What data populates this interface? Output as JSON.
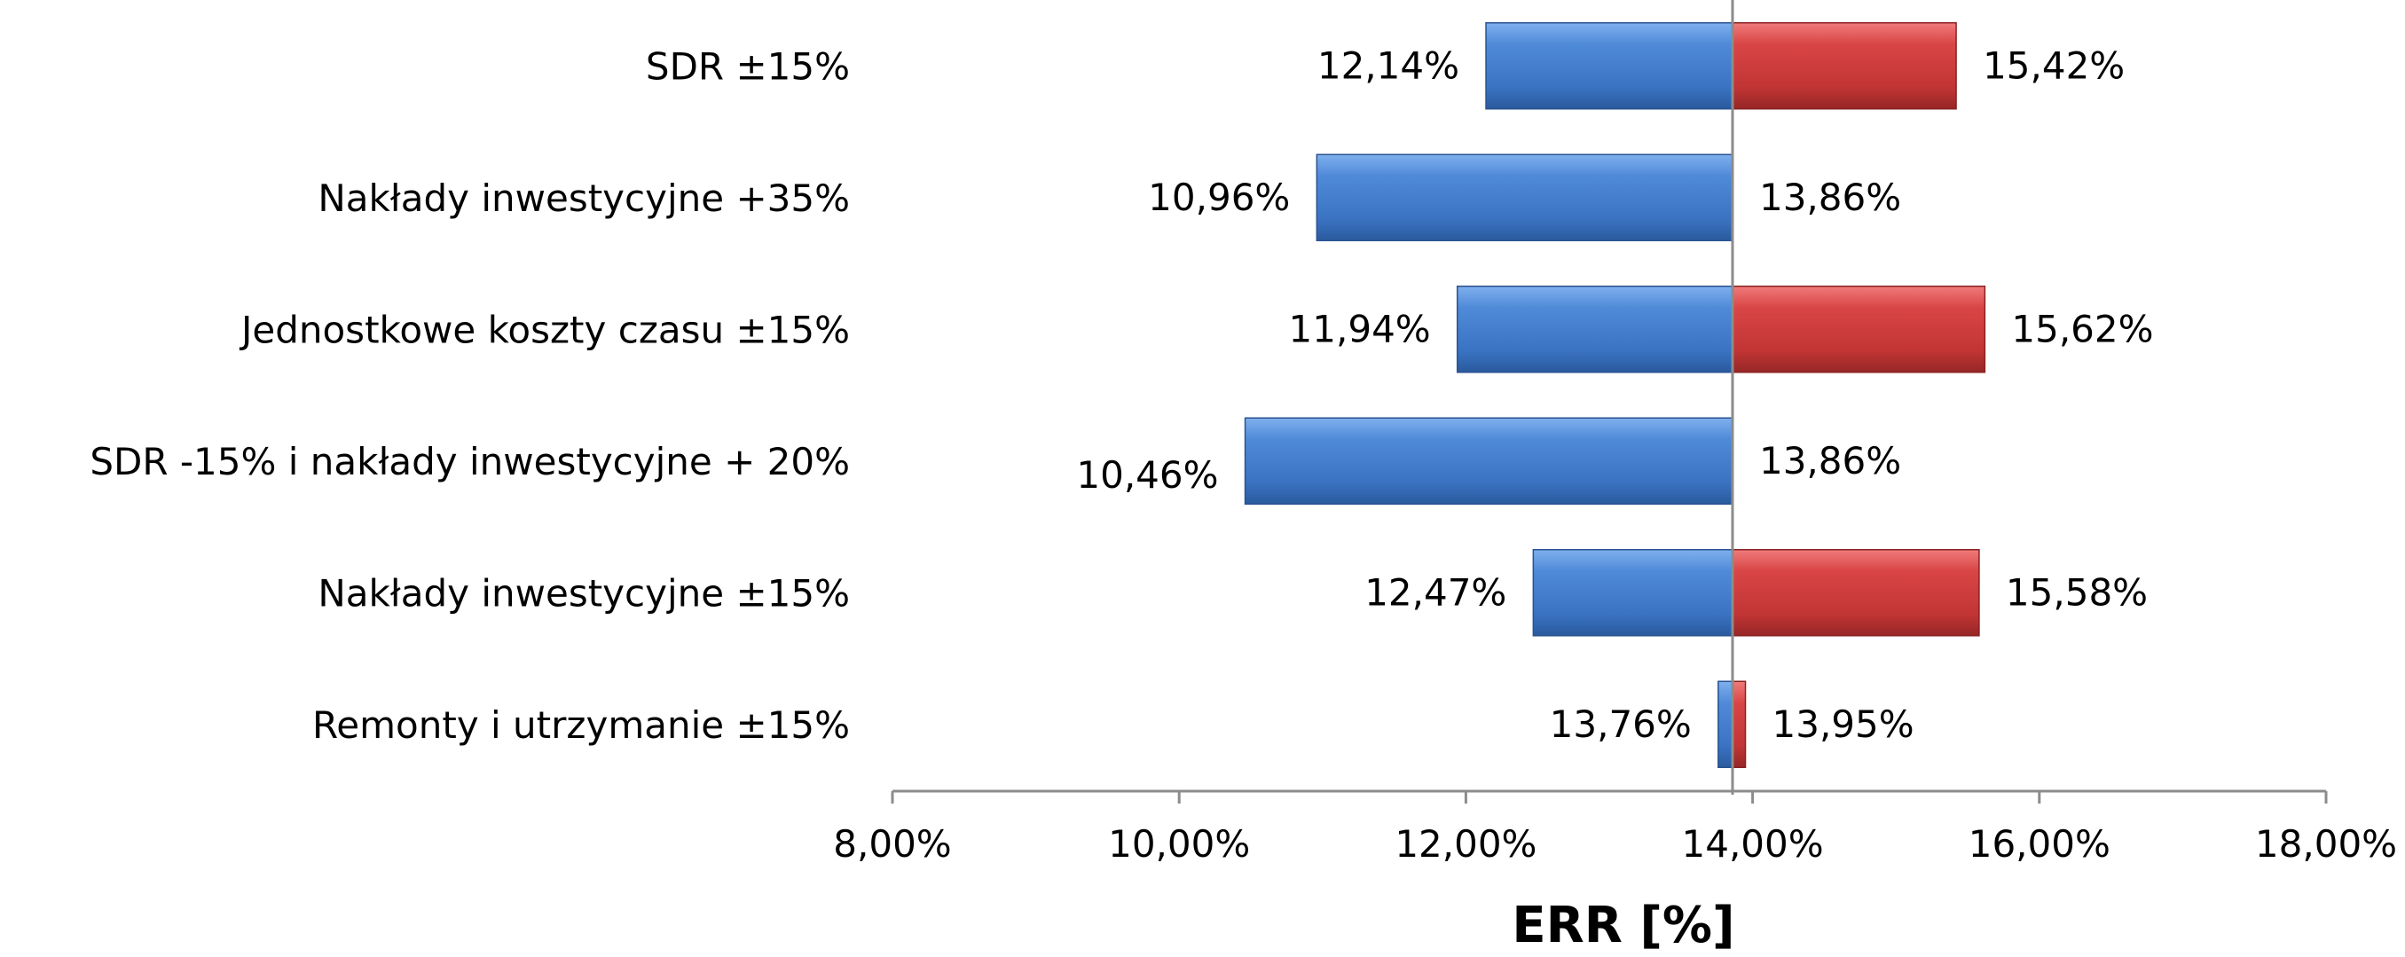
{
  "chart_data": {
    "type": "bar",
    "orientation": "horizontal",
    "subtype": "tornado",
    "base_value": 13.86,
    "categories": [
      "SDR ±15%",
      "Nakłady inwestycyjne +35%",
      "Jednostkowe koszty czasu ±15%",
      "SDR -15% i nakłady inwestycyjne + 20%",
      "Nakłady inwestycyjne ±15%",
      "Remonty i utrzymanie ±15%"
    ],
    "series": [
      {
        "color": "#3c78c8",
        "values": [
          12.14,
          10.96,
          11.94,
          10.46,
          12.47,
          13.76
        ],
        "labels": [
          "12,14%",
          "10,96%",
          "11,94%",
          "10,46%",
          "12,47%",
          "13,76%"
        ]
      },
      {
        "color": "#cc3a3a",
        "values": [
          15.42,
          13.86,
          15.62,
          13.86,
          15.58,
          13.95
        ],
        "labels": [
          "15,42%",
          "13,86%",
          "15,62%",
          "13,86%",
          "15,58%",
          "13,95%"
        ]
      }
    ],
    "xlabel": "ERR [%]",
    "ylabel": "",
    "title": "",
    "xlim": [
      8,
      18
    ],
    "xticks": [
      8,
      10,
      12,
      14,
      16,
      18
    ],
    "xtick_labels": [
      "8,00%",
      "10,00%",
      "12,00%",
      "14,00%",
      "16,00%",
      "18,00%"
    ],
    "grid": false,
    "legend": "none"
  }
}
